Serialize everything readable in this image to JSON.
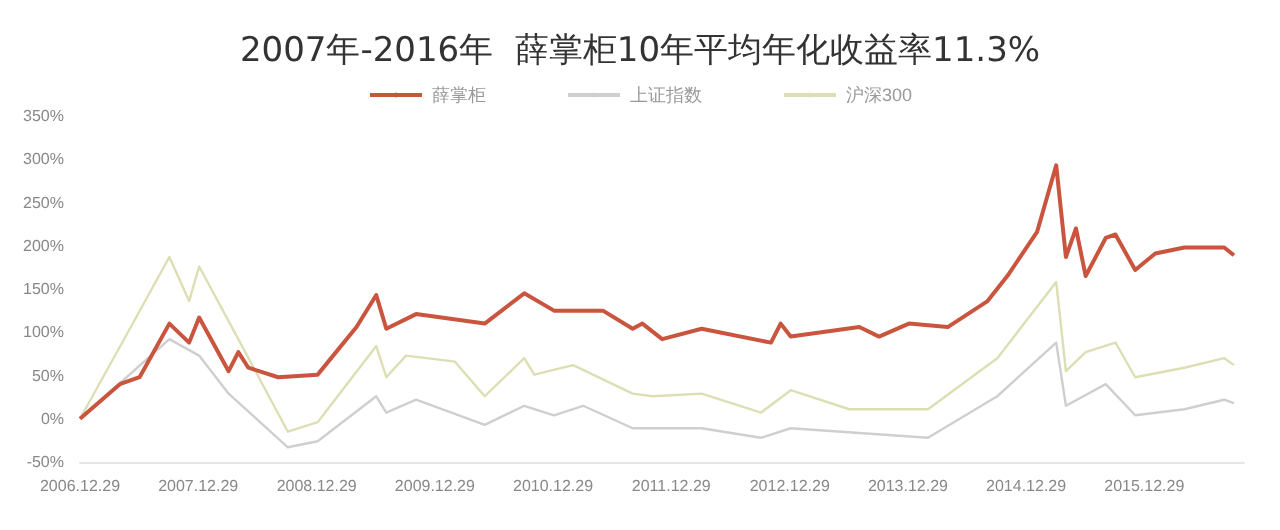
{
  "chart_data": {
    "type": "line",
    "title": "2007年-2016年  薛掌柜10年平均年化收益率11.3%",
    "series": [
      {
        "name": "薛掌柜",
        "color": "#c9553f",
        "x": [
          "2006-12-29",
          "2007-05",
          "2007-07",
          "2007-10",
          "2007-12",
          "2008-01",
          "2008-04",
          "2008-05",
          "2008-06",
          "2008-09",
          "2009-01",
          "2009-05",
          "2009-07",
          "2009-08",
          "2009-11",
          "2010-06",
          "2010-10",
          "2011-01",
          "2011-06",
          "2011-09",
          "2011-10",
          "2011-12",
          "2012-04",
          "2012-11",
          "2012-12",
          "2013-01",
          "2013-08",
          "2013-10",
          "2014-01",
          "2014-05",
          "2014-09",
          "2014-11",
          "2015-02",
          "2015-04",
          "2015-05",
          "2015-06",
          "2015-07",
          "2015-09",
          "2015-10",
          "2015-12",
          "2016-02",
          "2016-05",
          "2016-09",
          "2016-10"
        ],
        "values": [
          0,
          40,
          48,
          110,
          88,
          117,
          55,
          77,
          59,
          48,
          51,
          106,
          143,
          104,
          121,
          110,
          145,
          125,
          125,
          104,
          110,
          92,
          104,
          88,
          110,
          95,
          106,
          95,
          110,
          106,
          136,
          165,
          216,
          293,
          187,
          220,
          165,
          209,
          213,
          172,
          191,
          198,
          198,
          189
        ]
      },
      {
        "name": "上证指数",
        "color": "#cfcfcf",
        "x": [
          "2006-12-29",
          "2007-10",
          "2008-01",
          "2008-04",
          "2008-10",
          "2009-01",
          "2009-07",
          "2009-08",
          "2009-11",
          "2010-06",
          "2010-10",
          "2011-01",
          "2011-04",
          "2011-09",
          "2012-04",
          "2012-10",
          "2013-01",
          "2014-03",
          "2014-10",
          "2015-04",
          "2015-05",
          "2015-09",
          "2015-12",
          "2016-05",
          "2016-09",
          "2016-10"
        ],
        "values": [
          0,
          92,
          73,
          29,
          -33,
          -26,
          26,
          7,
          22,
          -7,
          15,
          4,
          15,
          -11,
          -11,
          -22,
          -11,
          -22,
          26,
          88,
          15,
          40,
          4,
          11,
          22,
          18
        ]
      },
      {
        "name": "沪深300",
        "color": "#dcdfb4",
        "x": [
          "2006-12-29",
          "2007-06",
          "2007-10",
          "2007-12",
          "2008-01",
          "2008-05",
          "2008-10",
          "2009-01",
          "2009-07",
          "2009-08",
          "2009-10",
          "2010-03",
          "2010-06",
          "2010-10",
          "2010-11",
          "2011-03",
          "2011-09",
          "2011-11",
          "2012-04",
          "2012-10",
          "2013-01",
          "2013-07",
          "2014-03",
          "2014-10",
          "2015-04",
          "2015-05",
          "2015-07",
          "2015-10",
          "2015-12",
          "2016-05",
          "2016-09",
          "2016-10"
        ],
        "values": [
          0,
          104,
          187,
          136,
          176,
          92,
          -15,
          -4,
          84,
          48,
          73,
          66,
          26,
          70,
          51,
          62,
          29,
          26,
          29,
          7,
          33,
          11,
          11,
          70,
          158,
          55,
          77,
          88,
          48,
          59,
          70,
          62
        ]
      }
    ],
    "xticks": [
      {
        "value": "2006-12-29",
        "label": "2006.12.29"
      },
      {
        "value": "2007-12-29",
        "label": "2007.12.29"
      },
      {
        "value": "2008-12-29",
        "label": "2008.12.29"
      },
      {
        "value": "2009-12-29",
        "label": "2009.12.29"
      },
      {
        "value": "2010-12-29",
        "label": "2010.12.29"
      },
      {
        "value": "2011-12-29",
        "label": "2011.12.29"
      },
      {
        "value": "2012-12-29",
        "label": "2012.12.29"
      },
      {
        "value": "2013-12-29",
        "label": "2013.12.29"
      },
      {
        "value": "2014-12-29",
        "label": "2014.12.29"
      },
      {
        "value": "2015-12-29",
        "label": "2015.12.29"
      }
    ],
    "xlim": [
      "2006-12-29",
      "2016-11-01"
    ],
    "ylim": [
      -50,
      350
    ],
    "yticks": [
      {
        "value": -50,
        "label": "-50%"
      },
      {
        "value": 0,
        "label": "0%"
      },
      {
        "value": 50,
        "label": "50%"
      },
      {
        "value": 100,
        "label": "100%"
      },
      {
        "value": 150,
        "label": "150%"
      },
      {
        "value": 200,
        "label": "200%"
      },
      {
        "value": 250,
        "label": "250%"
      },
      {
        "value": 300,
        "label": "300%"
      },
      {
        "value": 350,
        "label": "350%"
      }
    ],
    "grid": false,
    "legend": "top",
    "marker": "none",
    "line_style": "solid"
  }
}
